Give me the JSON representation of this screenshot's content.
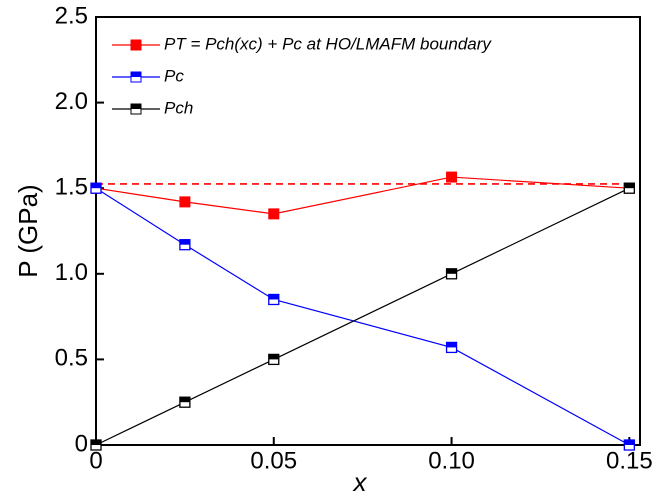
{
  "chart_data": {
    "type": "line",
    "xlabel": "x",
    "ylabel": "P (GPa)",
    "x": [
      0,
      0.025,
      0.05,
      0.1,
      0.15
    ],
    "series": [
      {
        "name": "PT = Pch(xc) + Pc at HO/LMAFM boundary",
        "color": "#ff0000",
        "marker": "filled",
        "values": [
          1.5,
          1.42,
          1.35,
          1.565,
          1.5
        ]
      },
      {
        "name": "Pc",
        "color": "#0000ff",
        "marker": "half",
        "values": [
          1.5,
          1.17,
          0.85,
          0.57,
          0.0
        ]
      },
      {
        "name": "Pch",
        "color": "#000000",
        "marker": "half",
        "values": [
          0,
          0.25,
          0.5,
          1.0,
          1.5
        ]
      }
    ],
    "reference_line": {
      "value": 1.525,
      "color": "#ff0000",
      "style": "dashed"
    },
    "xlim": [
      0,
      0.153
    ],
    "ylim": [
      0,
      2.5
    ],
    "xticks": [
      0,
      0.05,
      {
        "value": 0.1,
        "label": "0.10"
      },
      0.15
    ],
    "yticks": [
      0,
      0.5,
      {
        "value": 1,
        "label": "1.0"
      },
      1.5,
      {
        "value": 2,
        "label": "2.0"
      },
      2.5
    ],
    "legend": "upper left"
  }
}
